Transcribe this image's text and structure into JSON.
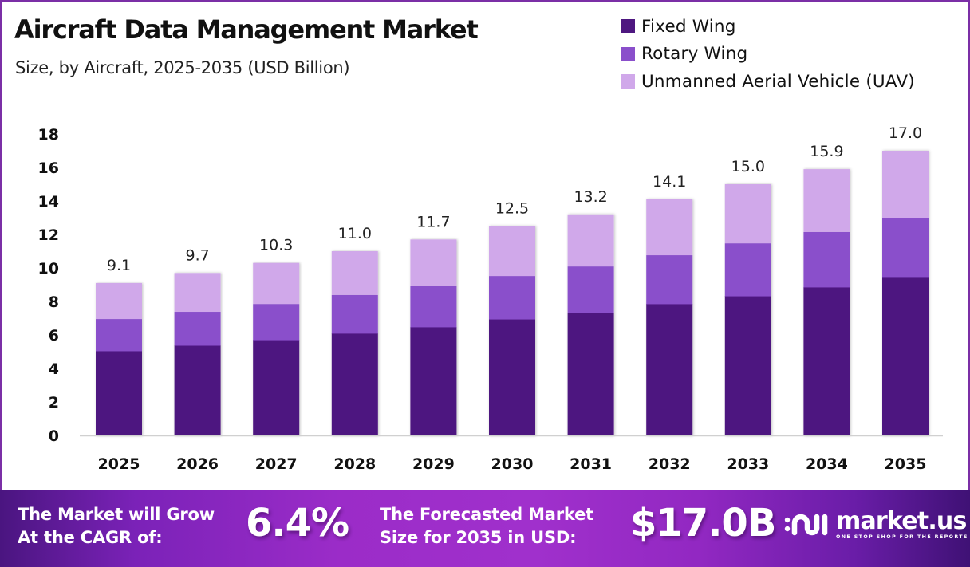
{
  "header": {
    "title": "Aircraft Data Management Market",
    "subtitle": "Size, by Aircraft, 2025-2035 (USD Billion)"
  },
  "legend": [
    {
      "label": "Fixed Wing",
      "color": "#4e1780"
    },
    {
      "label": "Rotary Wing",
      "color": "#8a4fcb"
    },
    {
      "label": "Unmanned Aerial Vehicle (UAV)",
      "color": "#d0a8ea"
    }
  ],
  "chart_data": {
    "type": "bar",
    "stacked": true,
    "title": "Aircraft Data Management Market",
    "subtitle": "Size, by Aircraft, 2025-2035 (USD Billion)",
    "xlabel": "",
    "ylabel": "",
    "categories": [
      "2025",
      "2026",
      "2027",
      "2028",
      "2029",
      "2030",
      "2031",
      "2032",
      "2033",
      "2034",
      "2035"
    ],
    "series": [
      {
        "name": "Fixed Wing",
        "color": "#4e1780",
        "values": [
          5.05,
          5.38,
          5.71,
          6.1,
          6.48,
          6.95,
          7.33,
          7.86,
          8.33,
          8.86,
          9.48
        ]
      },
      {
        "name": "Rotary Wing",
        "color": "#8a4fcb",
        "values": [
          1.9,
          2.0,
          2.14,
          2.29,
          2.43,
          2.57,
          2.76,
          2.9,
          3.14,
          3.29,
          3.52
        ]
      },
      {
        "name": "Unmanned Aerial Vehicle (UAV)",
        "color": "#d0a8ea",
        "values": [
          2.15,
          2.32,
          2.45,
          2.61,
          2.79,
          2.98,
          3.11,
          3.34,
          3.53,
          3.75,
          4.0
        ]
      }
    ],
    "totals": [
      9.1,
      9.7,
      10.3,
      11.0,
      11.7,
      12.5,
      13.2,
      14.1,
      15.0,
      15.9,
      17.0
    ],
    "total_labels": [
      "9.1",
      "9.7",
      "10.3",
      "11.0",
      "11.7",
      "12.5",
      "13.2",
      "14.1",
      "15.0",
      "15.9",
      "17.0"
    ],
    "ylim": [
      0,
      18
    ],
    "yticks": [
      0,
      2,
      4,
      6,
      8,
      10,
      12,
      14,
      16,
      18
    ],
    "grid": false,
    "legend_position": "top-right"
  },
  "footer": {
    "cagr_text_line1": "The Market will Grow",
    "cagr_text_line2": "At the CAGR of:",
    "cagr_value": "6.4%",
    "forecast_text_line1": "The Forecasted Market",
    "forecast_text_line2": "Size for 2035 in USD:",
    "forecast_value": "$17.0B",
    "brand_name": "market.us",
    "brand_tagline": "ONE STOP SHOP FOR THE REPORTS",
    "brand_icon": "market-us-logo-icon"
  }
}
